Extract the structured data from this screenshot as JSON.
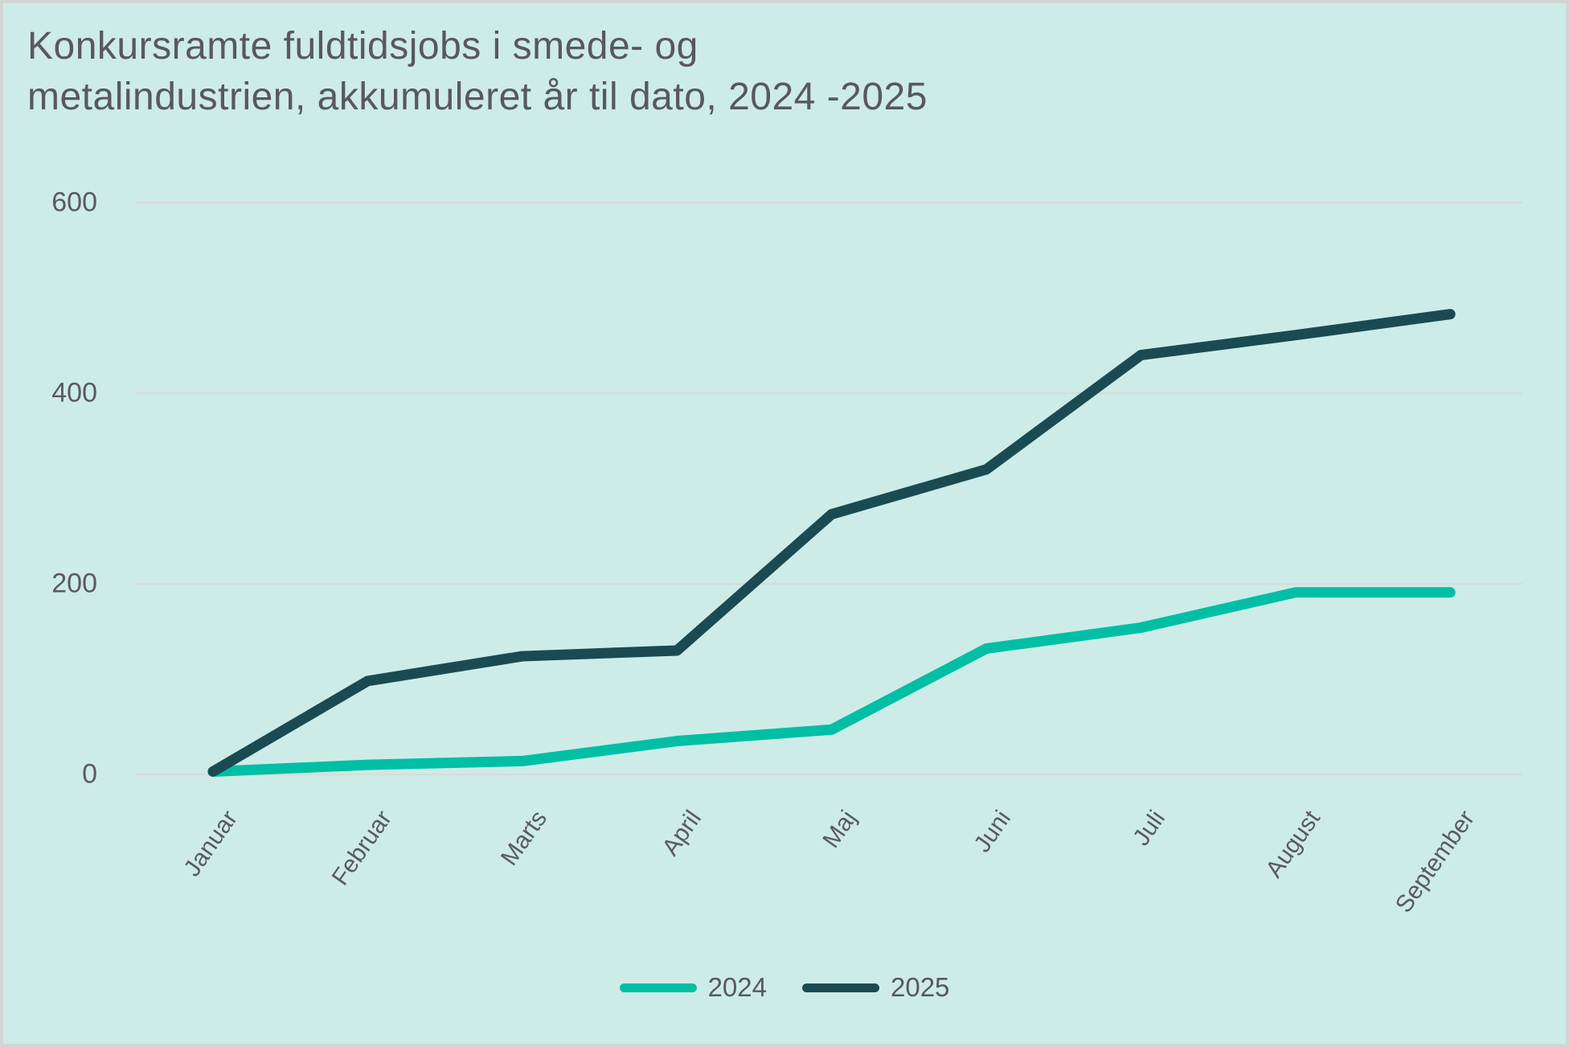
{
  "title": "Konkursramte fuldtidsjobs i smede- og\nmetalindustrien, akkumuleret år til dato, 2024 -2025",
  "colors": {
    "background": "#cdece8",
    "border": "#d2d5d4",
    "gridline": "#d9dbd8",
    "text": "#58595b",
    "series_2024": "#00bfa4",
    "series_2025": "#1a4b52"
  },
  "legend": {
    "items": [
      {
        "label": "2024",
        "color": "#00bfa4"
      },
      {
        "label": "2025",
        "color": "#1a4b52"
      }
    ]
  },
  "chart_data": {
    "type": "line",
    "title": "Konkursramte fuldtidsjobs i smede- og metalindustrien, akkumuleret år til dato, 2024 -2025",
    "categories": [
      "Januar",
      "Februar",
      "Marts",
      "April",
      "Maj",
      "Juni",
      "Juli",
      "August",
      "September"
    ],
    "series": [
      {
        "name": "2024",
        "color": "#00bfa4",
        "values": [
          3,
          10,
          14,
          35,
          47,
          132,
          154,
          191,
          191
        ]
      },
      {
        "name": "2025",
        "color": "#1a4b52",
        "values": [
          3,
          98,
          124,
          130,
          273,
          320,
          440,
          461,
          483
        ]
      }
    ],
    "xlabel": "",
    "ylabel": "",
    "ylim": [
      0,
      600
    ],
    "yticks": [
      0,
      200,
      400,
      600
    ],
    "grid": "horizontal",
    "legend_position": "bottom"
  }
}
